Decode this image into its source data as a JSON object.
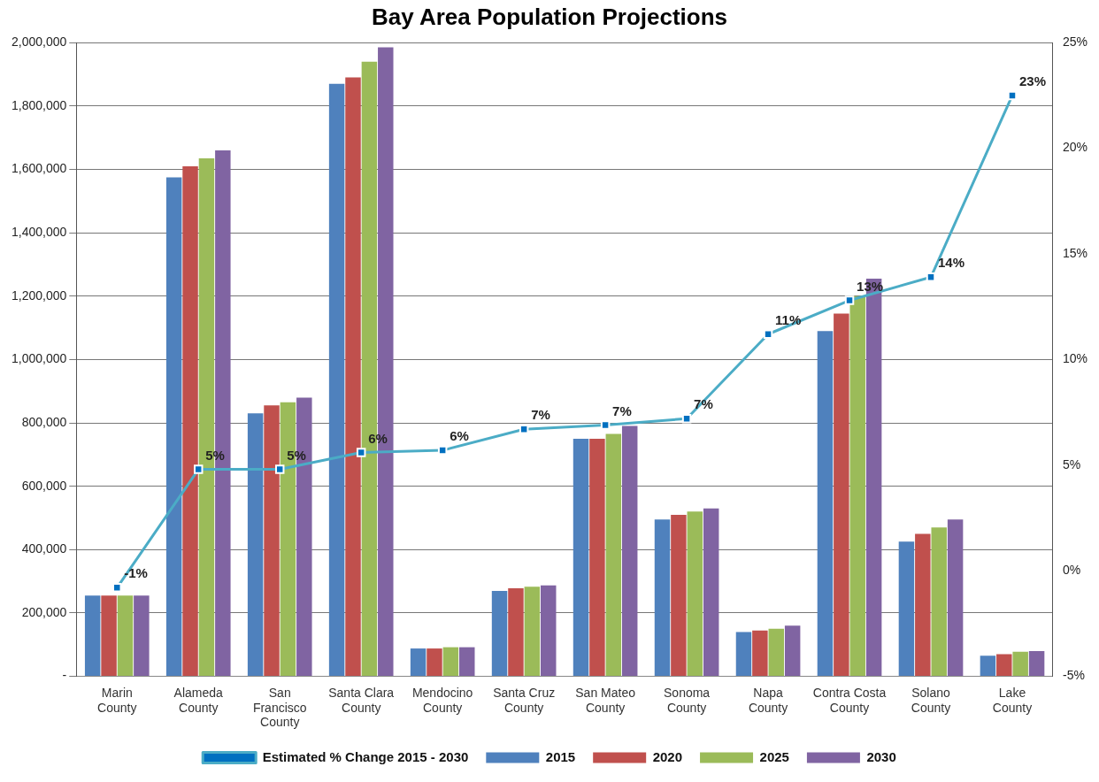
{
  "chart_data": {
    "type": "bar",
    "title": "Bay Area Population Projections",
    "categories": [
      "Marin County",
      "Alameda County",
      "San Francisco County",
      "Santa Clara County",
      "Mendocino County",
      "Santa Cruz County",
      "San Mateo County",
      "Sonoma County",
      "Napa County",
      "Contra Costa County",
      "Solano County",
      "Lake County"
    ],
    "series": [
      {
        "name": "2015",
        "color": "#4f81bd",
        "values": [
          255000,
          1575000,
          830000,
          1870000,
          88000,
          270000,
          750000,
          495000,
          140000,
          1090000,
          425000,
          65000
        ]
      },
      {
        "name": "2020",
        "color": "#c0504d",
        "values": [
          255000,
          1610000,
          855000,
          1890000,
          88000,
          278000,
          750000,
          510000,
          145000,
          1145000,
          450000,
          70000
        ]
      },
      {
        "name": "2025",
        "color": "#9bbb59",
        "values": [
          255000,
          1635000,
          865000,
          1940000,
          92000,
          283000,
          765000,
          520000,
          150000,
          1200000,
          470000,
          78000
        ]
      },
      {
        "name": "2030",
        "color": "#8064a2",
        "values": [
          255000,
          1660000,
          880000,
          1985000,
          92000,
          287000,
          790000,
          530000,
          160000,
          1255000,
          495000,
          80000
        ]
      },
      {
        "name": "Estimated % Change 2015 - 2030",
        "type": "line",
        "axis": "y2",
        "color": "#4bacc6",
        "marker": "square",
        "values": [
          -0.8,
          4.8,
          4.8,
          5.6,
          5.7,
          6.7,
          6.9,
          7.2,
          11.2,
          12.8,
          13.9,
          22.5
        ],
        "value_labels": [
          "-1%",
          "5%",
          "5%",
          "6%",
          "6%",
          "7%",
          "7%",
          "7%",
          "11%",
          "13%",
          "14%",
          "23%"
        ]
      }
    ],
    "ylim": [
      0,
      2000000
    ],
    "yticks": [
      {
        "value": 0,
        "label": "-"
      },
      {
        "value": 200000,
        "label": "200,000"
      },
      {
        "value": 400000,
        "label": "400,000"
      },
      {
        "value": 600000,
        "label": "600,000"
      },
      {
        "value": 800000,
        "label": "800,000"
      },
      {
        "value": 1000000,
        "label": "1,000,000"
      },
      {
        "value": 1200000,
        "label": "1,200,000"
      },
      {
        "value": 1400000,
        "label": "1,400,000"
      },
      {
        "value": 1600000,
        "label": "1,600,000"
      },
      {
        "value": 1800000,
        "label": "1,800,000"
      },
      {
        "value": 2000000,
        "label": "2,000,000"
      }
    ],
    "y2lim": [
      -5,
      25
    ],
    "y2ticks": [
      {
        "value": -5,
        "label": "-5%"
      },
      {
        "value": 0,
        "label": "0%"
      },
      {
        "value": 5,
        "label": "5%"
      },
      {
        "value": 10,
        "label": "10%"
      },
      {
        "value": 15,
        "label": "15%"
      },
      {
        "value": 20,
        "label": "20%"
      },
      {
        "value": 25,
        "label": "25%"
      }
    ],
    "grid": "y",
    "legend": "bottom"
  }
}
